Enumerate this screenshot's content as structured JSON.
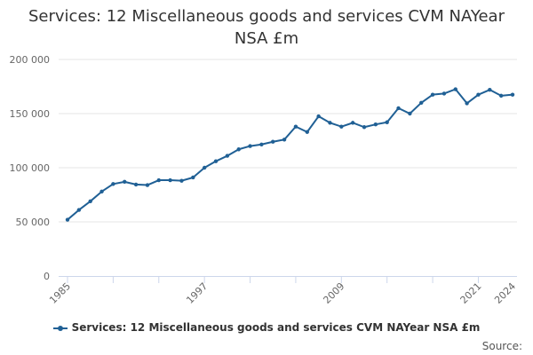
{
  "chart_data": {
    "type": "line",
    "title": "Services: 12 Miscellaneous goods and services CVM NAYear NSA £m",
    "xlabel": "",
    "ylabel": "",
    "ylim": [
      0,
      200000
    ],
    "xlim": [
      1985,
      2024
    ],
    "y_ticks": [
      0,
      50000,
      100000,
      150000,
      200000
    ],
    "y_tick_labels": [
      "0",
      "50 000",
      "100 000",
      "150 000",
      "200 000"
    ],
    "x_ticks": [
      1985,
      1997,
      2009,
      2021,
      2024
    ],
    "x_tick_labels": [
      "1985",
      "1997",
      "2009",
      "2021",
      "2024"
    ],
    "grid": "horizontal",
    "legend_position": "bottom",
    "series": [
      {
        "name": "Services: 12 Miscellaneous goods and services CVM NAYear NSA £m",
        "color": "#206095",
        "x": [
          1985,
          1986,
          1987,
          1988,
          1989,
          1990,
          1991,
          1992,
          1993,
          1994,
          1995,
          1996,
          1997,
          1998,
          1999,
          2000,
          2001,
          2002,
          2003,
          2004,
          2005,
          2006,
          2007,
          2008,
          2009,
          2010,
          2011,
          2012,
          2013,
          2014,
          2015,
          2016,
          2017,
          2018,
          2019,
          2020,
          2021,
          2022,
          2023,
          2024
        ],
        "values": [
          52000,
          61000,
          69000,
          78000,
          85000,
          87000,
          84500,
          84000,
          88500,
          88500,
          88000,
          91000,
          100000,
          106000,
          111000,
          117000,
          120000,
          121500,
          124000,
          126000,
          138000,
          133000,
          147500,
          141500,
          138000,
          141500,
          137500,
          140000,
          142000,
          155000,
          150000,
          160000,
          167500,
          168500,
          172500,
          159500,
          167500,
          172000,
          166500,
          167500
        ]
      }
    ]
  },
  "legend": {
    "label": "Services: 12 Miscellaneous goods and services CVM NAYear NSA £m"
  },
  "credits": {
    "label": "Source:"
  }
}
